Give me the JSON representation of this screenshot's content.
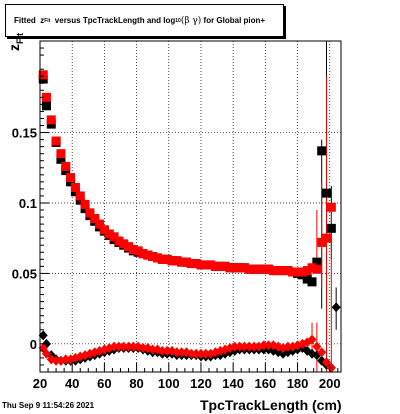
{
  "chart_data": {
    "type": "scatter",
    "title_parts": {
      "prefix": "Fitted",
      "z": "z",
      "z_sub": "Fit",
      "mid": "versus TpcTrackLength and log",
      "log_sub": "10",
      "beta_gamma": "(β γ)",
      "suffix": "for Global pion+"
    },
    "xlabel": "TpcTrackLength (cm)",
    "ylabel": "z",
    "ylabel_sub": "Fit",
    "timestamp": "Thu Sep  9 11:54:26 2021",
    "xlim": [
      20,
      207
    ],
    "ylim": [
      -0.02,
      0.215
    ],
    "x_ticks": [
      20,
      40,
      60,
      80,
      100,
      120,
      140,
      160,
      180,
      200
    ],
    "y_ticks": [
      0,
      0.05,
      0.1,
      0.15
    ],
    "y_tick_labels": [
      "0",
      "0.05",
      "0.1",
      "0.15"
    ],
    "grid": true,
    "colors": {
      "series_black": "#000000",
      "series_red": "#ff0000"
    },
    "series": [
      {
        "marker": "square",
        "color": "#000000",
        "x": [
          22,
          24,
          27,
          30,
          33,
          36,
          39,
          42,
          45,
          48,
          51,
          54,
          57,
          60,
          63,
          66,
          69,
          72,
          75,
          78,
          81,
          84,
          87,
          90,
          93,
          96,
          99,
          102,
          105,
          108,
          111,
          114,
          117,
          120,
          123,
          126,
          129,
          132,
          135,
          138,
          141,
          144,
          147,
          150,
          153,
          156,
          159,
          162,
          165,
          168,
          171,
          174,
          177,
          180,
          183,
          186,
          189,
          192,
          195,
          198,
          201
        ],
        "y": [
          0.188,
          0.169,
          0.156,
          0.143,
          0.131,
          0.123,
          0.115,
          0.108,
          0.102,
          0.096,
          0.091,
          0.087,
          0.083,
          0.08,
          0.077,
          0.074,
          0.072,
          0.07,
          0.068,
          0.066,
          0.065,
          0.064,
          0.063,
          0.062,
          0.061,
          0.06,
          0.06,
          0.059,
          0.059,
          0.058,
          0.058,
          0.057,
          0.057,
          0.056,
          0.056,
          0.056,
          0.055,
          0.055,
          0.055,
          0.054,
          0.054,
          0.054,
          0.054,
          0.053,
          0.053,
          0.053,
          0.053,
          0.053,
          0.052,
          0.052,
          0.052,
          0.052,
          0.051,
          0.05,
          0.049,
          0.046,
          0.044,
          0.058,
          0.137,
          0.107,
          0.082
        ]
      },
      {
        "marker": "square",
        "color": "#ff0000",
        "x": [
          22,
          24,
          27,
          30,
          33,
          36,
          39,
          42,
          45,
          48,
          51,
          54,
          57,
          60,
          63,
          66,
          69,
          72,
          75,
          78,
          81,
          84,
          87,
          90,
          93,
          96,
          99,
          102,
          105,
          108,
          111,
          114,
          117,
          120,
          123,
          126,
          129,
          132,
          135,
          138,
          141,
          144,
          147,
          150,
          153,
          156,
          159,
          162,
          165,
          168,
          171,
          174,
          177,
          180,
          183,
          186,
          189,
          192,
          195,
          198,
          201
        ],
        "y": [
          0.191,
          0.175,
          0.159,
          0.144,
          0.135,
          0.126,
          0.118,
          0.111,
          0.105,
          0.099,
          0.093,
          0.089,
          0.085,
          0.081,
          0.078,
          0.076,
          0.073,
          0.071,
          0.069,
          0.067,
          0.066,
          0.064,
          0.063,
          0.062,
          0.061,
          0.06,
          0.06,
          0.059,
          0.059,
          0.058,
          0.058,
          0.057,
          0.057,
          0.056,
          0.056,
          0.056,
          0.055,
          0.055,
          0.055,
          0.054,
          0.054,
          0.054,
          0.054,
          0.053,
          0.053,
          0.053,
          0.053,
          0.053,
          0.052,
          0.052,
          0.052,
          0.052,
          0.051,
          0.051,
          0.051,
          0.052,
          0.054,
          0.053,
          0.072,
          0.075,
          0.097
        ]
      },
      {
        "marker": "diamond",
        "color": "#000000",
        "x": [
          22,
          24,
          27,
          30,
          33,
          36,
          39,
          42,
          45,
          48,
          51,
          54,
          57,
          60,
          63,
          66,
          69,
          72,
          75,
          78,
          81,
          84,
          87,
          90,
          93,
          96,
          99,
          102,
          105,
          108,
          111,
          114,
          117,
          120,
          123,
          126,
          129,
          132,
          135,
          138,
          141,
          144,
          147,
          150,
          153,
          156,
          159,
          162,
          165,
          168,
          171,
          174,
          177,
          180,
          183,
          186,
          189,
          192,
          195,
          198,
          201,
          204
        ],
        "y": [
          0.006,
          0.0,
          -0.008,
          -0.011,
          -0.012,
          -0.012,
          -0.012,
          -0.012,
          -0.011,
          -0.01,
          -0.009,
          -0.008,
          -0.007,
          -0.006,
          -0.005,
          -0.004,
          -0.003,
          -0.003,
          -0.003,
          -0.003,
          -0.003,
          -0.004,
          -0.005,
          -0.006,
          -0.006,
          -0.007,
          -0.007,
          -0.007,
          -0.008,
          -0.008,
          -0.008,
          -0.008,
          -0.008,
          -0.009,
          -0.009,
          -0.009,
          -0.008,
          -0.008,
          -0.007,
          -0.006,
          -0.005,
          -0.004,
          -0.004,
          -0.004,
          -0.004,
          -0.004,
          -0.004,
          -0.004,
          -0.005,
          -0.006,
          -0.007,
          -0.006,
          -0.005,
          -0.004,
          -0.003,
          -0.005,
          -0.007,
          -0.008,
          -0.012,
          -0.015,
          -0.017,
          0.026
        ]
      },
      {
        "marker": "diamond",
        "color": "#ff0000",
        "x": [
          22,
          24,
          27,
          30,
          33,
          36,
          39,
          42,
          45,
          48,
          51,
          54,
          57,
          60,
          63,
          66,
          69,
          72,
          75,
          78,
          81,
          84,
          87,
          90,
          93,
          96,
          99,
          102,
          105,
          108,
          111,
          114,
          117,
          120,
          123,
          126,
          129,
          132,
          135,
          138,
          141,
          144,
          147,
          150,
          153,
          156,
          159,
          162,
          165,
          168,
          171,
          174,
          177,
          180,
          183,
          186,
          189,
          192,
          195,
          198,
          201
        ],
        "y": [
          -0.003,
          -0.007,
          -0.011,
          -0.012,
          -0.012,
          -0.011,
          -0.011,
          -0.01,
          -0.009,
          -0.008,
          -0.007,
          -0.006,
          -0.005,
          -0.004,
          -0.003,
          -0.002,
          -0.002,
          -0.002,
          -0.002,
          -0.002,
          -0.002,
          -0.003,
          -0.003,
          -0.004,
          -0.004,
          -0.005,
          -0.005,
          -0.005,
          -0.006,
          -0.006,
          -0.006,
          -0.007,
          -0.007,
          -0.007,
          -0.007,
          -0.007,
          -0.006,
          -0.005,
          -0.004,
          -0.003,
          -0.002,
          -0.002,
          -0.002,
          -0.002,
          -0.002,
          -0.002,
          -0.001,
          -0.001,
          -0.001,
          -0.002,
          -0.003,
          -0.002,
          -0.002,
          -0.001,
          0.0,
          0.001,
          0.003,
          -0.002,
          -0.006,
          -0.013,
          -0.017
        ]
      }
    ],
    "error_bars": [
      {
        "x": 195,
        "y_low": 0.025,
        "y_high": 0.145,
        "color": "#000000"
      },
      {
        "x": 198,
        "y_low": -0.02,
        "y_high": 0.215,
        "color": "#000000"
      },
      {
        "x": 201,
        "y_low": 0.06,
        "y_high": 0.112,
        "color": "#000000"
      },
      {
        "x": 204,
        "y_low": 0.01,
        "y_high": 0.04,
        "color": "#000000"
      },
      {
        "x": 192,
        "y_low": 0.05,
        "y_high": 0.095,
        "color": "#ff0000"
      },
      {
        "x": 195,
        "y_low": 0.04,
        "y_high": 0.115,
        "color": "#ff0000"
      },
      {
        "x": 198,
        "y_low": -0.02,
        "y_high": 0.19,
        "color": "#ff0000"
      },
      {
        "x": 201,
        "y_low": -0.02,
        "y_high": 0.1,
        "color": "#ff0000"
      },
      {
        "x": 189,
        "y_low": -0.008,
        "y_high": 0.015,
        "color": "#ff0000"
      },
      {
        "x": 192,
        "y_low": -0.02,
        "y_high": 0.015,
        "color": "#ff0000"
      }
    ]
  }
}
